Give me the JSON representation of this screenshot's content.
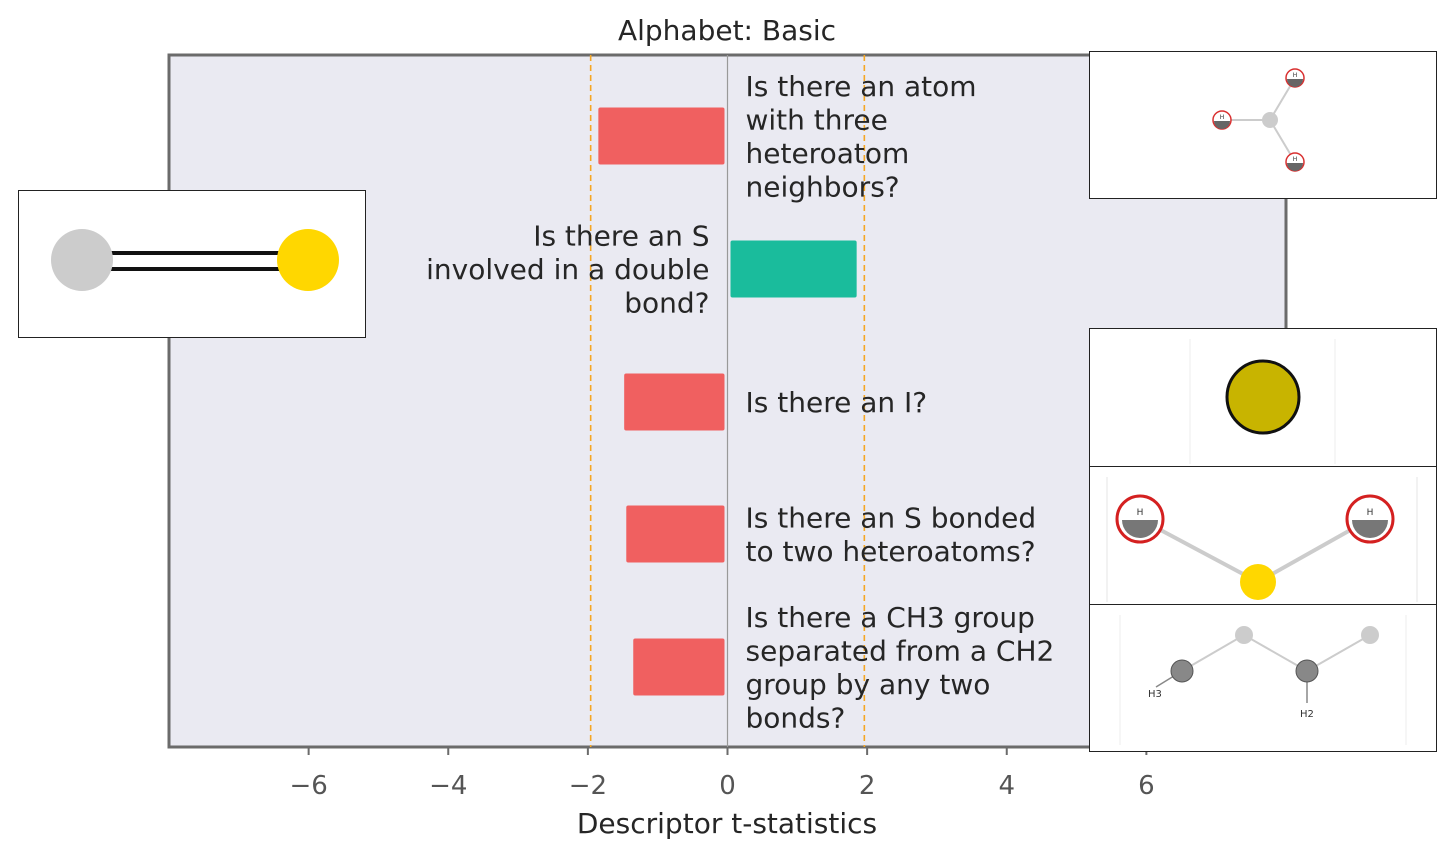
{
  "chart_data": {
    "type": "bar",
    "orientation": "horizontal",
    "title": "Alphabet: Basic",
    "xlabel": "Descriptor t-statistics",
    "ylabel": "",
    "xlim": [
      -8,
      8
    ],
    "xticks": [
      -6,
      -4,
      -2,
      0,
      2,
      4,
      6
    ],
    "xtick_labels": [
      "−6",
      "−4",
      "−2",
      "0",
      "2",
      "4",
      "6"
    ],
    "threshold_lines": [
      -1.96,
      1.96
    ],
    "grid": false,
    "categories": [
      "Is there an atom with three heteroatom neighbors?",
      "Is there an S involved in a double bond?",
      "Is there an I?",
      "Is there an S bonded to two heteroatoms?",
      "Is there a CH3 group separated from a CH2 group by any two bonds?"
    ],
    "values": [
      -1.85,
      1.85,
      -1.48,
      -1.45,
      -1.35
    ],
    "label_lines": [
      [
        "Is there an atom",
        "with three",
        "heteroatom",
        "neighbors?"
      ],
      [
        "Is there an S",
        "involved in a double",
        "bond?"
      ],
      [
        "Is there an I?"
      ],
      [
        "Is there an S bonded",
        "to two heteroatoms?"
      ],
      [
        "Is there a CH3 group",
        "separated from a CH2",
        "group by any two",
        "bonds?"
      ]
    ],
    "colors": {
      "negative": "#f06060",
      "positive": "#1abc9c",
      "threshold": "#f5a623",
      "plot_bg": "#eaeaf2",
      "axis": "#6b6b6b",
      "zero_line": "#999999"
    }
  },
  "molecule_images": [
    {
      "descriptor": "Is there an atom with three heteroatom neighbors?",
      "atoms_label": "H",
      "icon": "central-atom-three-h-neighbors"
    },
    {
      "descriptor": "Is there an S involved in a double bond?",
      "icon": "c-double-bond-s"
    },
    {
      "descriptor": "Is there an I?",
      "icon": "iodine-atom"
    },
    {
      "descriptor": "Is there an S bonded to two heteroatoms?",
      "atoms_label": "H",
      "icon": "s-bonded-two-h"
    },
    {
      "descriptor": "Is there a CH3 group separated from a CH2 group by any two bonds?",
      "h3_label": "H3",
      "h2_label": "H2",
      "icon": "ch3-ch2-chain"
    }
  ]
}
